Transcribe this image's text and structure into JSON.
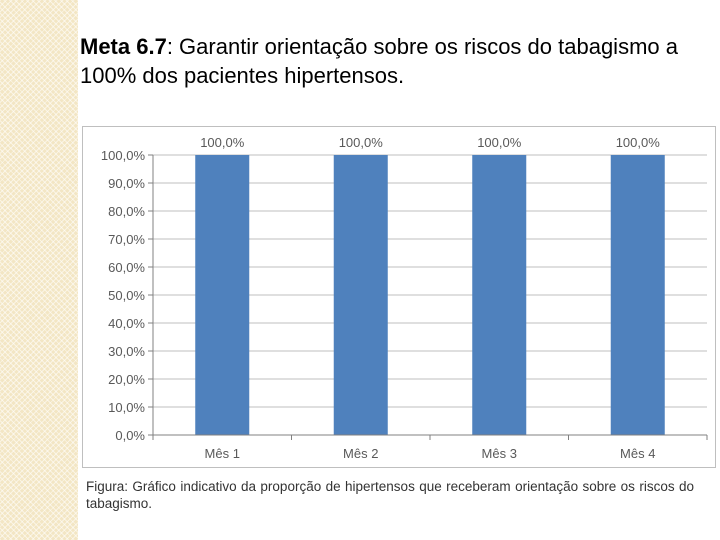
{
  "heading": {
    "bold": "Meta 6.7",
    "rest": ": Garantir orientação sobre os riscos do tabagismo a 100% dos pacientes hipertensos."
  },
  "caption": "Figura: Gráfico indicativo da proporção de hipertensos que receberam orientação sobre os riscos do tabagismo.",
  "colors": {
    "bar": "#4f81bd",
    "axis": "#808080",
    "grid": "#bfbfbf",
    "label": "#595959"
  },
  "chart_data": {
    "type": "bar",
    "title": "",
    "xlabel": "",
    "ylabel": "",
    "categories": [
      "Mês 1",
      "Mês 2",
      "Mês 3",
      "Mês 4"
    ],
    "values": [
      100.0,
      100.0,
      100.0,
      100.0
    ],
    "data_labels": [
      "100,0%",
      "100,0%",
      "100,0%",
      "100,0%"
    ],
    "ylim": [
      0,
      100
    ],
    "yticks": [
      "0,0%",
      "10,0%",
      "20,0%",
      "30,0%",
      "40,0%",
      "50,0%",
      "60,0%",
      "70,0%",
      "80,0%",
      "90,0%",
      "100,0%"
    ],
    "grid": true,
    "legend": "none"
  }
}
